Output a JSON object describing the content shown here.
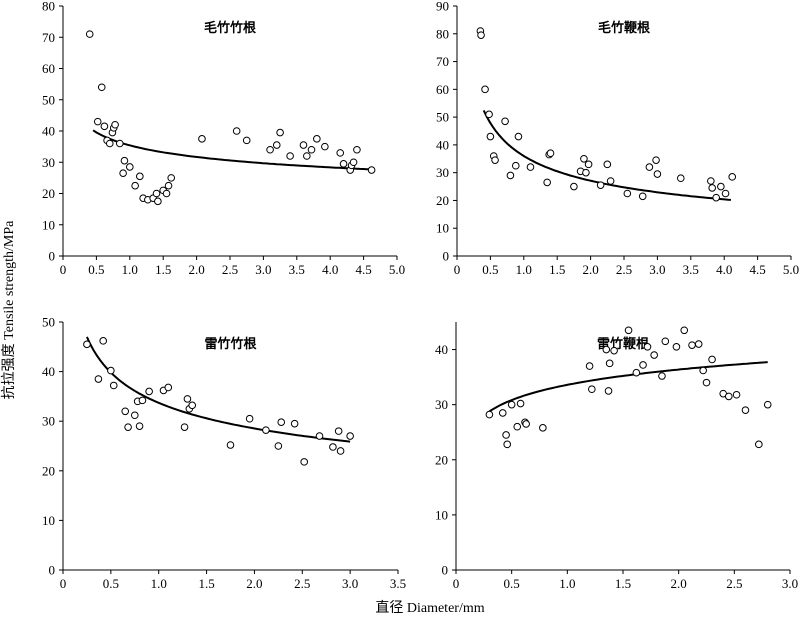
{
  "ylabel": "抗拉强度 Tensile strength/MPa",
  "xlabel": "直径 Diameter/mm",
  "chart_data": [
    {
      "type": "scatter",
      "title": "毛竹竹根",
      "xlim": [
        0,
        5
      ],
      "ylim": [
        0,
        80
      ],
      "xticks": [
        0,
        0.5,
        1.0,
        1.5,
        2.0,
        2.5,
        3.0,
        3.5,
        4.0,
        4.5,
        5.0
      ],
      "xtick_labels": [
        "0",
        "0.5",
        "1.0",
        "1.5",
        "2.0",
        "2.5",
        "3.0",
        "3.5",
        "4.0",
        "4.5",
        "5.0"
      ],
      "yticks": [
        0,
        10,
        20,
        30,
        40,
        50,
        60,
        70,
        80
      ],
      "ytick_labels": [
        "0",
        "10",
        "20",
        "30",
        "40",
        "50",
        "60",
        "70",
        "80"
      ],
      "points": [
        [
          0.4,
          71
        ],
        [
          0.52,
          43
        ],
        [
          0.58,
          54
        ],
        [
          0.62,
          41.5
        ],
        [
          0.66,
          37
        ],
        [
          0.7,
          36
        ],
        [
          0.74,
          39.5
        ],
        [
          0.76,
          41
        ],
        [
          0.78,
          42
        ],
        [
          0.85,
          36
        ],
        [
          0.9,
          26.5
        ],
        [
          0.92,
          30.5
        ],
        [
          1.0,
          28.5
        ],
        [
          1.08,
          22.5
        ],
        [
          1.15,
          25.5
        ],
        [
          1.2,
          18.5
        ],
        [
          1.27,
          18
        ],
        [
          1.35,
          18.5
        ],
        [
          1.4,
          20
        ],
        [
          1.42,
          17.5
        ],
        [
          1.5,
          21
        ],
        [
          1.55,
          20
        ],
        [
          1.58,
          22.5
        ],
        [
          1.62,
          25
        ],
        [
          2.08,
          37.5
        ],
        [
          2.6,
          40
        ],
        [
          2.75,
          37
        ],
        [
          3.1,
          34
        ],
        [
          3.2,
          35.5
        ],
        [
          3.25,
          39.5
        ],
        [
          3.4,
          32
        ],
        [
          3.6,
          35.5
        ],
        [
          3.65,
          32
        ],
        [
          3.72,
          34
        ],
        [
          3.8,
          37.5
        ],
        [
          3.92,
          35
        ],
        [
          4.15,
          33
        ],
        [
          4.2,
          29.5
        ],
        [
          4.3,
          27.5
        ],
        [
          4.32,
          29
        ],
        [
          4.35,
          30
        ],
        [
          4.4,
          34
        ],
        [
          4.62,
          27.5
        ]
      ],
      "fit": {
        "model": "power",
        "a": 35.4,
        "b": -0.16,
        "x_range": [
          0.45,
          4.6
        ]
      }
    },
    {
      "type": "scatter",
      "title": "毛竹鞭根",
      "xlim": [
        0,
        5
      ],
      "ylim": [
        0,
        90
      ],
      "xticks": [
        0,
        0.5,
        1.0,
        1.5,
        2.0,
        2.5,
        3.0,
        3.5,
        4.0,
        4.5,
        5.0
      ],
      "xtick_labels": [
        "0",
        "0.5",
        "1.0",
        "1.5",
        "2.0",
        "2.5",
        "3.0",
        "3.5",
        "4.0",
        "4.5",
        "5.0"
      ],
      "yticks": [
        0,
        10,
        20,
        30,
        40,
        50,
        60,
        70,
        80,
        90
      ],
      "ytick_labels": [
        "0",
        "10",
        "20",
        "30",
        "40",
        "50",
        "60",
        "70",
        "80",
        "90"
      ],
      "points": [
        [
          0.35,
          81
        ],
        [
          0.36,
          79.5
        ],
        [
          0.42,
          60
        ],
        [
          0.48,
          51
        ],
        [
          0.5,
          43
        ],
        [
          0.55,
          36
        ],
        [
          0.57,
          34.5
        ],
        [
          0.72,
          48.5
        ],
        [
          0.8,
          29
        ],
        [
          0.88,
          32.5
        ],
        [
          0.92,
          43
        ],
        [
          1.1,
          32
        ],
        [
          1.35,
          26.5
        ],
        [
          1.38,
          36.5
        ],
        [
          1.4,
          37
        ],
        [
          1.75,
          25
        ],
        [
          1.85,
          30.5
        ],
        [
          1.9,
          35
        ],
        [
          1.93,
          30
        ],
        [
          1.97,
          33
        ],
        [
          2.15,
          25.5
        ],
        [
          2.25,
          33
        ],
        [
          2.3,
          27
        ],
        [
          2.55,
          22.5
        ],
        [
          2.78,
          21.5
        ],
        [
          2.88,
          32
        ],
        [
          2.98,
          34.5
        ],
        [
          3.0,
          29.5
        ],
        [
          3.35,
          28
        ],
        [
          3.8,
          27
        ],
        [
          3.82,
          24.5
        ],
        [
          3.88,
          21
        ],
        [
          3.95,
          25
        ],
        [
          4.02,
          22.5
        ],
        [
          4.12,
          28.5
        ]
      ],
      "fit": {
        "model": "power",
        "a": 36.0,
        "b": -0.41,
        "x_range": [
          0.4,
          4.1
        ]
      }
    },
    {
      "type": "scatter",
      "title": "雷竹竹根",
      "xlim": [
        0,
        3.5
      ],
      "ylim": [
        0,
        50
      ],
      "xticks": [
        0,
        0.5,
        1.0,
        1.5,
        2.0,
        2.5,
        3.0,
        3.5
      ],
      "xtick_labels": [
        "0",
        "0.5",
        "1.0",
        "1.5",
        "2.0",
        "2.5",
        "3.0",
        "3.5"
      ],
      "yticks": [
        0,
        10,
        20,
        30,
        40,
        50
      ],
      "ytick_labels": [
        "0",
        "10",
        "20",
        "30",
        "40",
        "50"
      ],
      "points": [
        [
          0.25,
          45.5
        ],
        [
          0.37,
          38.5
        ],
        [
          0.42,
          46.2
        ],
        [
          0.5,
          40.2
        ],
        [
          0.53,
          37.2
        ],
        [
          0.65,
          32
        ],
        [
          0.68,
          28.8
        ],
        [
          0.75,
          31.2
        ],
        [
          0.78,
          34
        ],
        [
          0.8,
          29
        ],
        [
          0.83,
          34.2
        ],
        [
          0.9,
          36
        ],
        [
          1.05,
          36.2
        ],
        [
          1.1,
          36.8
        ],
        [
          1.27,
          28.8
        ],
        [
          1.3,
          34.5
        ],
        [
          1.32,
          32.5
        ],
        [
          1.35,
          33.2
        ],
        [
          1.75,
          25.2
        ],
        [
          1.95,
          30.5
        ],
        [
          2.12,
          28.2
        ],
        [
          2.25,
          25
        ],
        [
          2.28,
          29.8
        ],
        [
          2.42,
          29.5
        ],
        [
          2.52,
          21.8
        ],
        [
          2.68,
          27
        ],
        [
          2.82,
          24.8
        ],
        [
          2.88,
          28
        ],
        [
          2.9,
          24
        ],
        [
          3.0,
          27
        ]
      ],
      "fit": {
        "model": "power",
        "a": 33.7,
        "b": -0.24,
        "x_range": [
          0.25,
          3.0
        ]
      }
    },
    {
      "type": "scatter",
      "title": "雷竹鞭根",
      "xlim": [
        0,
        3.0
      ],
      "ylim": [
        0,
        45
      ],
      "xticks": [
        0,
        0.5,
        1.0,
        1.5,
        2.0,
        2.5,
        3.0
      ],
      "xtick_labels": [
        "0",
        "0.5",
        "1.0",
        "1.5",
        "2.0",
        "2.5",
        "3.0"
      ],
      "yticks": [
        0,
        10,
        20,
        30,
        40
      ],
      "ytick_labels": [
        "0",
        "10",
        "20",
        "30",
        "40"
      ],
      "points": [
        [
          0.3,
          28.2
        ],
        [
          0.42,
          28.5
        ],
        [
          0.45,
          24.5
        ],
        [
          0.46,
          22.8
        ],
        [
          0.5,
          30
        ],
        [
          0.55,
          26
        ],
        [
          0.58,
          30.2
        ],
        [
          0.62,
          26.8
        ],
        [
          0.63,
          26.5
        ],
        [
          0.78,
          25.8
        ],
        [
          1.2,
          37
        ],
        [
          1.22,
          32.8
        ],
        [
          1.35,
          40
        ],
        [
          1.37,
          32.5
        ],
        [
          1.38,
          37.5
        ],
        [
          1.42,
          39.8
        ],
        [
          1.55,
          43.5
        ],
        [
          1.62,
          35.8
        ],
        [
          1.68,
          37.2
        ],
        [
          1.72,
          40.5
        ],
        [
          1.78,
          39
        ],
        [
          1.85,
          35.2
        ],
        [
          1.88,
          41.5
        ],
        [
          1.98,
          40.5
        ],
        [
          2.05,
          43.5
        ],
        [
          2.12,
          40.8
        ],
        [
          2.18,
          41
        ],
        [
          2.22,
          36.2
        ],
        [
          2.25,
          34
        ],
        [
          2.3,
          38.2
        ],
        [
          2.4,
          32
        ],
        [
          2.45,
          31.5
        ],
        [
          2.52,
          31.8
        ],
        [
          2.6,
          29
        ],
        [
          2.72,
          22.8
        ],
        [
          2.8,
          30
        ]
      ],
      "fit": {
        "model": "log",
        "a": 33.6,
        "b": 4.0,
        "x_range": [
          0.3,
          2.8
        ]
      }
    }
  ]
}
